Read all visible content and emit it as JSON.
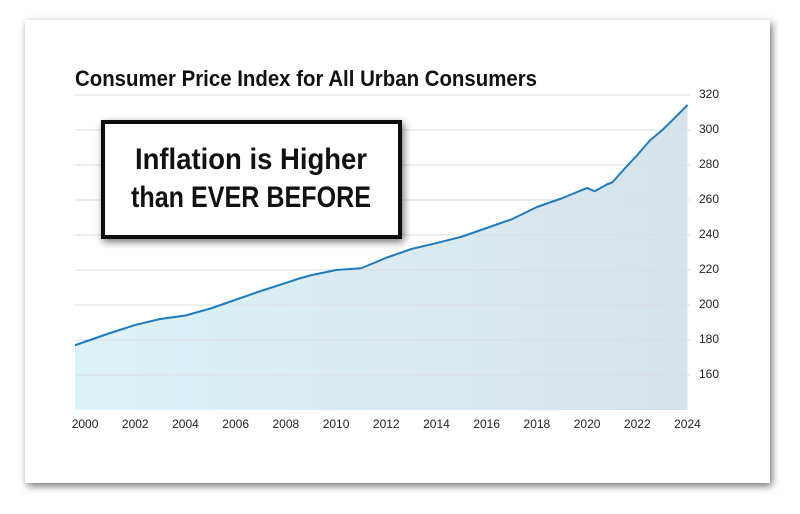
{
  "chart_data": {
    "type": "area-line",
    "title": "Consumer Price Index for All Urban Consumers",
    "annotation": [
      "Inflation is Higher",
      "than EVER BEFORE"
    ],
    "color": "#1f7bbf",
    "grid": true,
    "x": [
      1999.6,
      2000,
      2001,
      2002,
      2003,
      2004,
      2005,
      2006,
      2007,
      2008,
      2008.5,
      2009,
      2010,
      2011,
      2012,
      2013,
      2014,
      2015,
      2016,
      2017,
      2018,
      2019,
      2020,
      2020.3,
      2020.8,
      2021,
      2021.5,
      2022,
      2022.5,
      2023,
      2023.5,
      2024
    ],
    "values": [
      177,
      179,
      184,
      188.6,
      192,
      194,
      198,
      203,
      208,
      212.6,
      215,
      217,
      220,
      221,
      227,
      232,
      235.4,
      239,
      244,
      249,
      256,
      261,
      266.9,
      265,
      269,
      270,
      278,
      285.7,
      294,
      300,
      307,
      314.3
    ],
    "xlim": [
      1999.6,
      2024.1
    ],
    "ylim": [
      140,
      320
    ],
    "xticks": [
      2000,
      2002,
      2004,
      2006,
      2008,
      2010,
      2012,
      2014,
      2016,
      2018,
      2020,
      2022,
      2024
    ],
    "yticks": [
      160,
      180,
      200,
      220,
      240,
      260,
      280,
      300,
      320
    ]
  }
}
